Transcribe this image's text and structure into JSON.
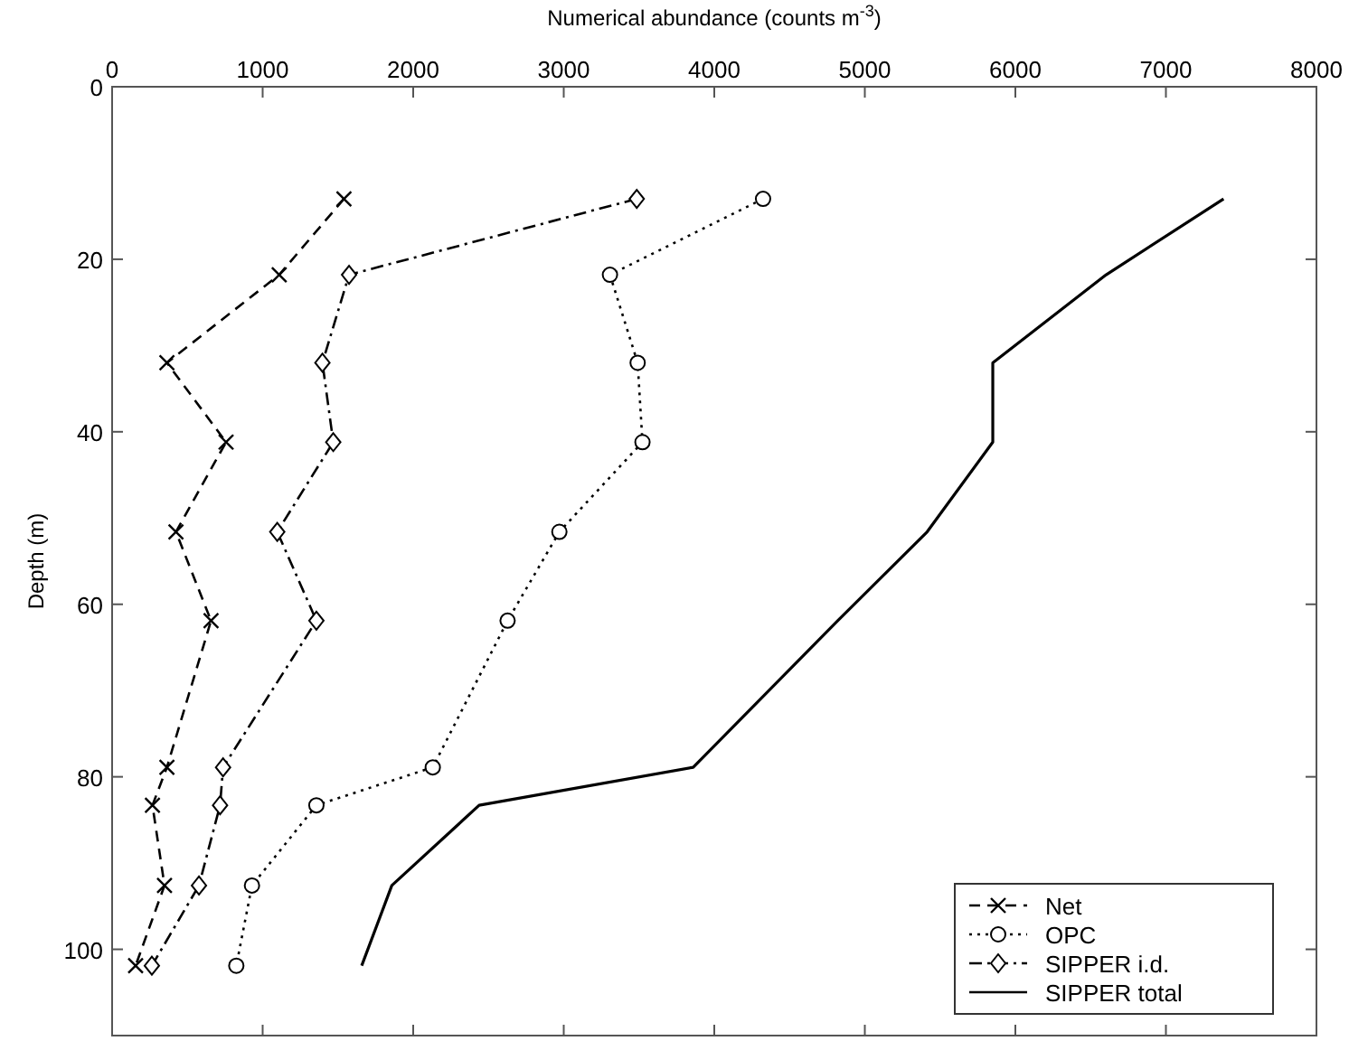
{
  "chart_data": {
    "type": "line",
    "xlabel": "Numerical abundance (counts m$^{-3}$)",
    "ylabel": "Depth (m)",
    "xlim": [
      0,
      8000
    ],
    "xticks": [
      0,
      1000,
      2000,
      3000,
      4000,
      5000,
      6000,
      7000,
      8000
    ],
    "ylim": [
      110,
      0
    ],
    "yticks": [
      0,
      20,
      40,
      60,
      80,
      100
    ],
    "grid": false,
    "legend": "bottom right",
    "series": [
      {
        "name": "Net",
        "color": "#000000",
        "marker": "cross",
        "line_style": "dashed",
        "x": [
          1540,
          1110,
          364,
          757,
          424,
          657,
          364,
          268,
          348,
          156
        ],
        "values": [
          13,
          21.8,
          32,
          41.2,
          51.6,
          61.9,
          78.9,
          83.3,
          92.6,
          101.9
        ]
      },
      {
        "name": "OPC",
        "color": "#000000",
        "marker": "circle",
        "line_style": "dotted",
        "x": [
          4324,
          3307,
          3491,
          3523,
          2971,
          2627,
          2130,
          1357,
          929,
          825
        ],
        "values": [
          13,
          21.8,
          32,
          41.2,
          51.6,
          61.9,
          78.9,
          83.3,
          92.6,
          101.9
        ]
      },
      {
        "name": "SIPPER i.d.",
        "color": "#000000",
        "marker": "diamond",
        "line_style": "dashdot",
        "x": [
          3485,
          1574,
          1397,
          1469,
          1097,
          1357,
          737,
          717,
          577,
          264
        ],
        "values": [
          13,
          21.8,
          32,
          41.2,
          51.6,
          61.9,
          78.9,
          83.3,
          92.6,
          101.9
        ]
      },
      {
        "name": "SIPPER total",
        "color": "#000000",
        "marker": "none",
        "line_style": "solid",
        "x": [
          7383,
          6603,
          5850,
          5850,
          5414,
          4820,
          3860,
          2438,
          1858,
          1658
        ],
        "values": [
          13,
          21.8,
          32,
          41.2,
          51.6,
          61.9,
          78.9,
          83.3,
          92.6,
          101.9
        ]
      }
    ]
  }
}
